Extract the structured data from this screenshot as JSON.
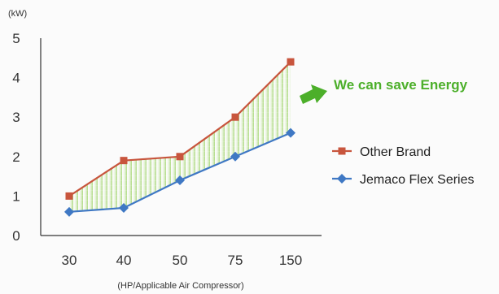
{
  "chart_data": {
    "type": "line",
    "categories": [
      "30",
      "40",
      "50",
      "75",
      "150"
    ],
    "ylabel": "(kW)",
    "xlabel": "(HP/Applicable Air Compressor)",
    "ylim": [
      0,
      5
    ],
    "yticks": [
      "0",
      "1",
      "2",
      "3",
      "4",
      "5"
    ],
    "grid": false,
    "legend_position": "right",
    "series": [
      {
        "name": "Other Brand",
        "values": [
          1.0,
          1.9,
          2.0,
          3.0,
          4.4
        ],
        "color": "#c8553d",
        "marker": "square"
      },
      {
        "name": "Jemaco Flex Series",
        "values": [
          0.6,
          0.7,
          1.4,
          2.0,
          2.6
        ],
        "color": "#3f78c4",
        "marker": "diamond"
      }
    ],
    "annotation": {
      "text": "We can save Energy",
      "color": "#4caf2a",
      "icon": "green-arrow-icon"
    },
    "fill_between": {
      "color": "#a8d870"
    }
  }
}
